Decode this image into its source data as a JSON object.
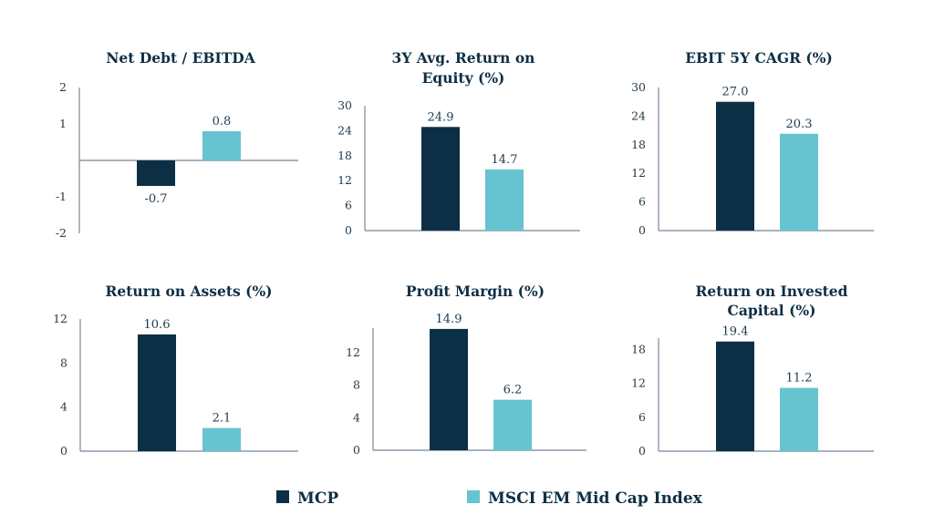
{
  "colors": {
    "mcp": "#0c2f45",
    "index": "#66c3d0",
    "axis": "#8a9aa8",
    "text": "#0d2f45"
  },
  "legend": [
    {
      "name": "MCP",
      "color": "#0c2f45"
    },
    {
      "name": "MSCI EM Mid Cap Index",
      "color": "#66c3d0"
    }
  ],
  "chart_data": [
    {
      "type": "bar",
      "title": [
        "Net Debt / EBITDA"
      ],
      "categories": [
        "MCP",
        "MSCI EM Mid Cap Index"
      ],
      "values": [
        -0.7,
        0.8
      ],
      "labels": [
        "-0.7",
        "0.8"
      ],
      "yticks": [
        2,
        1,
        -1,
        -2
      ],
      "ytick_labels": [
        "2",
        "1",
        "-1",
        "-2"
      ],
      "ylim": [
        -2,
        2
      ],
      "xlabel": "",
      "ylabel": ""
    },
    {
      "type": "bar",
      "title": [
        "3Y Avg. Return on",
        "Equity (%)"
      ],
      "categories": [
        "MCP",
        "MSCI EM Mid Cap Index"
      ],
      "values": [
        24.9,
        14.7
      ],
      "labels": [
        "24.9",
        "14.7"
      ],
      "yticks": [
        0,
        6,
        12,
        18,
        24,
        30
      ],
      "ytick_labels": [
        "0",
        "6",
        "12",
        "18",
        "24",
        "30"
      ],
      "ylim": [
        0,
        30
      ],
      "xlabel": "",
      "ylabel": ""
    },
    {
      "type": "bar",
      "title": [
        "EBIT 5Y CAGR  (%)"
      ],
      "categories": [
        "MCP",
        "MSCI EM Mid Cap Index"
      ],
      "values": [
        27.0,
        20.3
      ],
      "labels": [
        "27.0",
        "20.3"
      ],
      "yticks": [
        0,
        6,
        12,
        18,
        24,
        30
      ],
      "ytick_labels": [
        "0",
        "6",
        "12",
        "18",
        "24",
        "30"
      ],
      "ylim": [
        0,
        30
      ],
      "xlabel": "",
      "ylabel": ""
    },
    {
      "type": "bar",
      "title": [
        "Return on Assets (%)"
      ],
      "categories": [
        "MCP",
        "MSCI EM Mid Cap Index"
      ],
      "values": [
        10.6,
        2.1
      ],
      "labels": [
        "10.6",
        "2.1"
      ],
      "yticks": [
        0,
        4,
        8,
        12
      ],
      "ytick_labels": [
        "0",
        "4",
        "8",
        "12"
      ],
      "ylim": [
        0,
        12
      ],
      "xlabel": "",
      "ylabel": ""
    },
    {
      "type": "bar",
      "title": [
        "Profit Margin (%)"
      ],
      "categories": [
        "MCP",
        "MSCI EM Mid Cap Index"
      ],
      "values": [
        14.9,
        6.2
      ],
      "labels": [
        "14.9",
        "6.2"
      ],
      "yticks": [
        0,
        4,
        8,
        12
      ],
      "ytick_labels": [
        "0",
        "4",
        "8",
        "12"
      ],
      "ylim": [
        0,
        15
      ],
      "xlabel": "",
      "ylabel": ""
    },
    {
      "type": "bar",
      "title": [
        "Return on Invested",
        "Capital (%)"
      ],
      "categories": [
        "MCP",
        "MSCI EM Mid Cap Index"
      ],
      "values": [
        19.4,
        11.2
      ],
      "labels": [
        "19.4",
        "11.2"
      ],
      "yticks": [
        0,
        6,
        12,
        18
      ],
      "ytick_labels": [
        "0",
        "6",
        "12",
        "18"
      ],
      "ylim": [
        0,
        20
      ],
      "xlabel": "",
      "ylabel": ""
    }
  ]
}
